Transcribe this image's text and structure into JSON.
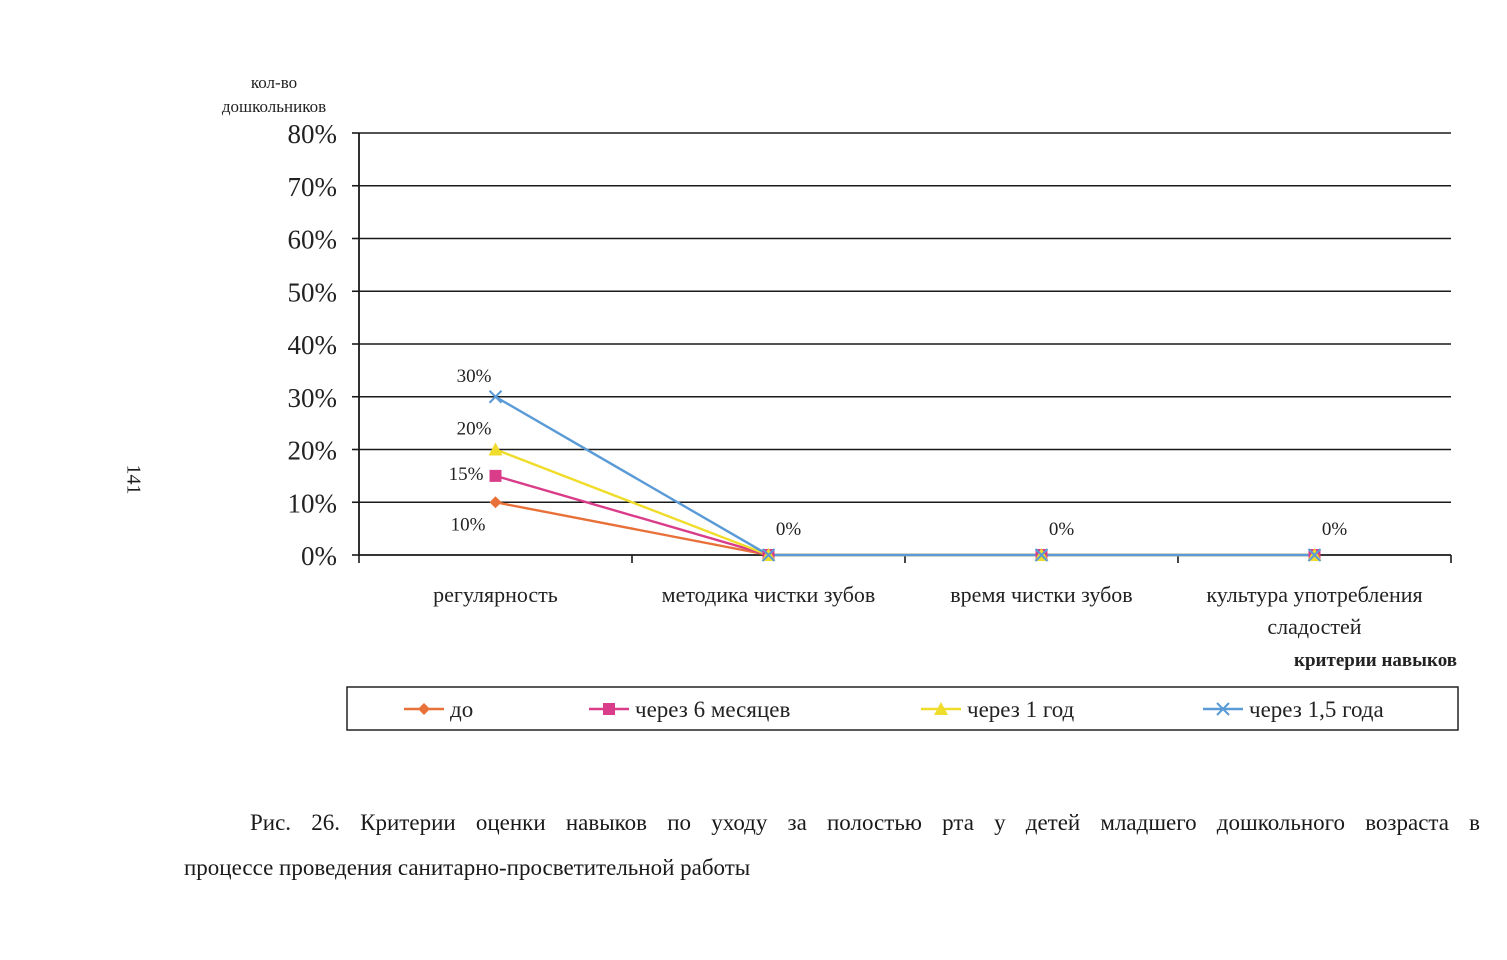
{
  "page_number": "141",
  "chart_data": {
    "type": "line",
    "ylabel_line1": "кол-во",
    "ylabel_line2": "дошкольников",
    "xlabel": "критерии навыков",
    "ylim": [
      0,
      80
    ],
    "ytick_values": [
      0,
      10,
      20,
      30,
      40,
      50,
      60,
      70,
      80
    ],
    "ytick_labels": [
      "0%",
      "10%",
      "20%",
      "30%",
      "40%",
      "50%",
      "60%",
      "70%",
      "80%"
    ],
    "grid": true,
    "legend_position": "bottom",
    "categories": [
      {
        "line1": "регулярность",
        "line2": ""
      },
      {
        "line1": "методика чистки зубов",
        "line2": ""
      },
      {
        "line1": "время чистки зубов",
        "line2": ""
      },
      {
        "line1": "культура употребления",
        "line2": "сладостей"
      }
    ],
    "series": [
      {
        "name": "до",
        "values": [
          10,
          0,
          0,
          0
        ],
        "color": "#e8713a",
        "marker": "diamond"
      },
      {
        "name": "через 6 месяцев",
        "values": [
          15,
          0,
          0,
          0
        ],
        "color": "#d93d8a",
        "marker": "square"
      },
      {
        "name": "через 1 год",
        "values": [
          20,
          0,
          0,
          0
        ],
        "color": "#f0dc2a",
        "marker": "triangle"
      },
      {
        "name": "через 1,5 года",
        "values": [
          30,
          0,
          0,
          0
        ],
        "color": "#5a9ad6",
        "marker": "x"
      }
    ],
    "data_labels": [
      {
        "text": "30%",
        "series": 3,
        "index": 0
      },
      {
        "text": "20%",
        "series": 2,
        "index": 0
      },
      {
        "text": "15%",
        "series": 1,
        "index": 0
      },
      {
        "text": "10%",
        "series": 0,
        "index": 0
      },
      {
        "text": "0%",
        "series": 3,
        "index": 1
      },
      {
        "text": "0%",
        "series": 3,
        "index": 2
      },
      {
        "text": "0%",
        "series": 3,
        "index": 3
      }
    ]
  },
  "caption": {
    "line1": "Рис. 26. Критерии оценки навыков по уходу за полостью рта у детей младшего дошкольного возраста в",
    "line2": "процессе проведения санитарно-просветительной работы"
  }
}
